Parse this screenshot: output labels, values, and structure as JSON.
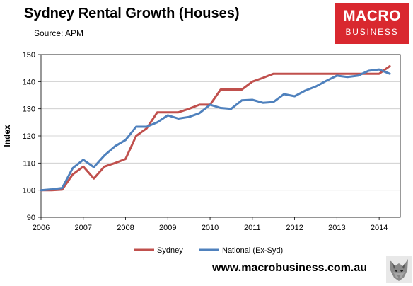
{
  "header": {
    "title": "Sydney Rental Growth (Houses)",
    "source": "Source: APM"
  },
  "logo": {
    "line1": "MACRO",
    "line2": "BUSINESS"
  },
  "footer": {
    "url": "www.macrobusiness.com.au"
  },
  "colors": {
    "sydney": "#c0504d",
    "national": "#4f81bd"
  },
  "chart_data": {
    "type": "line",
    "title": "Sydney Rental Growth (Houses)",
    "subtitle": "Source: APM",
    "xlabel": "",
    "ylabel": "Index",
    "xlim": [
      2006,
      2014.5
    ],
    "ylim": [
      90,
      150
    ],
    "x_ticks": [
      2006,
      2007,
      2008,
      2009,
      2010,
      2011,
      2012,
      2013,
      2014
    ],
    "y_ticks": [
      90,
      100,
      110,
      120,
      130,
      140,
      150
    ],
    "grid": "horizontal",
    "legend": "bottom",
    "series": [
      {
        "name": "Sydney",
        "color": "#c0504d",
        "x": [
          2006.0,
          2006.25,
          2006.5,
          2006.75,
          2007.0,
          2007.25,
          2007.5,
          2007.75,
          2008.0,
          2008.25,
          2008.5,
          2008.75,
          2009.0,
          2009.25,
          2009.5,
          2009.75,
          2010.0,
          2010.25,
          2010.5,
          2010.75,
          2011.0,
          2011.25,
          2011.5,
          2011.75,
          2012.0,
          2012.25,
          2012.5,
          2012.75,
          2013.0,
          2013.25,
          2013.5,
          2013.75,
          2014.0,
          2014.25
        ],
        "values": [
          100,
          100,
          100.2,
          105.8,
          108.7,
          104.3,
          108.7,
          110.0,
          111.5,
          120.0,
          122.8,
          128.7,
          128.7,
          128.7,
          130.0,
          131.5,
          131.5,
          137.1,
          137.1,
          137.1,
          140.0,
          141.4,
          142.9,
          142.9,
          142.9,
          142.9,
          142.9,
          142.9,
          142.9,
          142.9,
          142.9,
          142.9,
          142.9,
          145.7
        ]
      },
      {
        "name": "National (Ex-Syd)",
        "color": "#4f81bd",
        "x": [
          2006.0,
          2006.25,
          2006.5,
          2006.75,
          2007.0,
          2007.25,
          2007.5,
          2007.75,
          2008.0,
          2008.25,
          2008.5,
          2008.75,
          2009.0,
          2009.25,
          2009.5,
          2009.75,
          2010.0,
          2010.25,
          2010.5,
          2010.75,
          2011.0,
          2011.25,
          2011.5,
          2011.75,
          2012.0,
          2012.25,
          2012.5,
          2012.75,
          2013.0,
          2013.25,
          2013.5,
          2013.75,
          2014.0,
          2014.25
        ],
        "values": [
          100,
          100.3,
          100.8,
          108.1,
          111.2,
          108.5,
          112.8,
          116.2,
          118.5,
          123.4,
          123.4,
          125.0,
          127.6,
          126.4,
          127.0,
          128.4,
          131.5,
          130.3,
          130.0,
          133.1,
          133.3,
          132.2,
          132.5,
          135.4,
          134.6,
          136.7,
          138.2,
          140.3,
          142.2,
          141.7,
          142.2,
          144.0,
          144.5,
          142.9
        ]
      }
    ]
  }
}
